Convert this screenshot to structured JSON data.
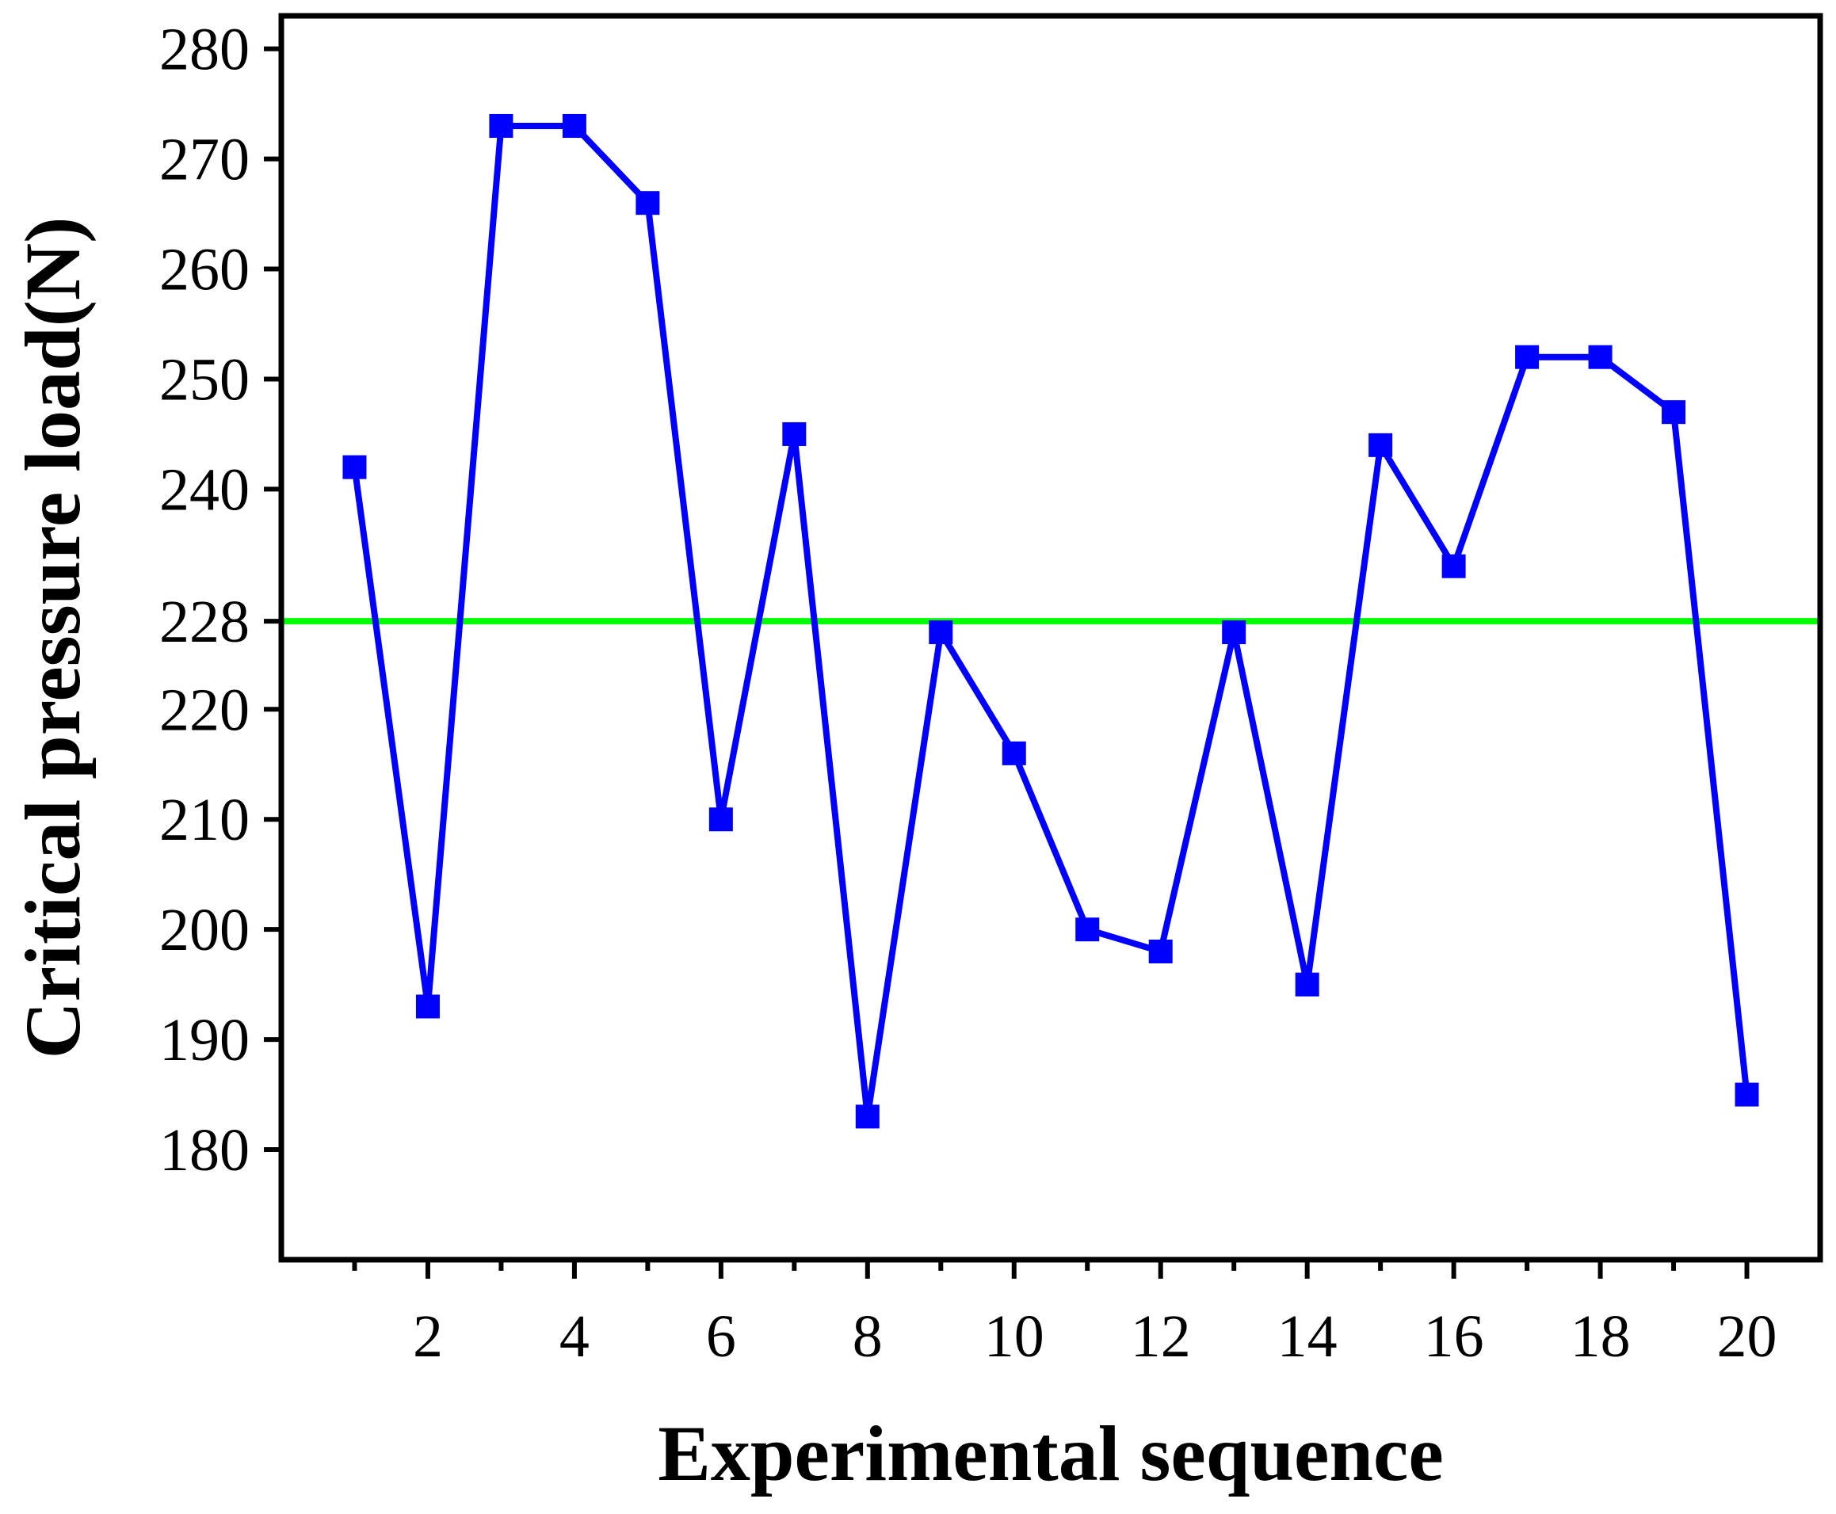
{
  "chart_data": {
    "type": "line",
    "title": "",
    "xlabel": "Experimental sequence",
    "ylabel": "Critical pressure load(N)",
    "xlim": [
      0,
      21
    ],
    "ylim": [
      170,
      283
    ],
    "x_ticks_major": [
      2,
      4,
      6,
      8,
      10,
      12,
      14,
      16,
      18,
      20
    ],
    "x_ticks_minor": [
      1,
      3,
      5,
      7,
      9,
      11,
      13,
      15,
      17,
      19
    ],
    "y_ticks": [
      180,
      190,
      200,
      210,
      220,
      228,
      240,
      250,
      260,
      270,
      280
    ],
    "grid": false,
    "legend": "none",
    "series": [
      {
        "color": "#0000ff",
        "marker": "square",
        "x": [
          1,
          2,
          3,
          4,
          5,
          6,
          7,
          8,
          9,
          10,
          11,
          12,
          13,
          14,
          15,
          16,
          17,
          18,
          19,
          20
        ],
        "values": [
          242,
          193,
          273,
          273,
          266,
          210,
          245,
          183,
          227,
          216,
          200,
          198,
          227,
          195,
          244,
          233,
          252,
          252,
          247,
          185
        ]
      }
    ],
    "reference_lines": [
      {
        "orientation": "horizontal",
        "value": 228,
        "color": "#00ff00"
      }
    ]
  }
}
